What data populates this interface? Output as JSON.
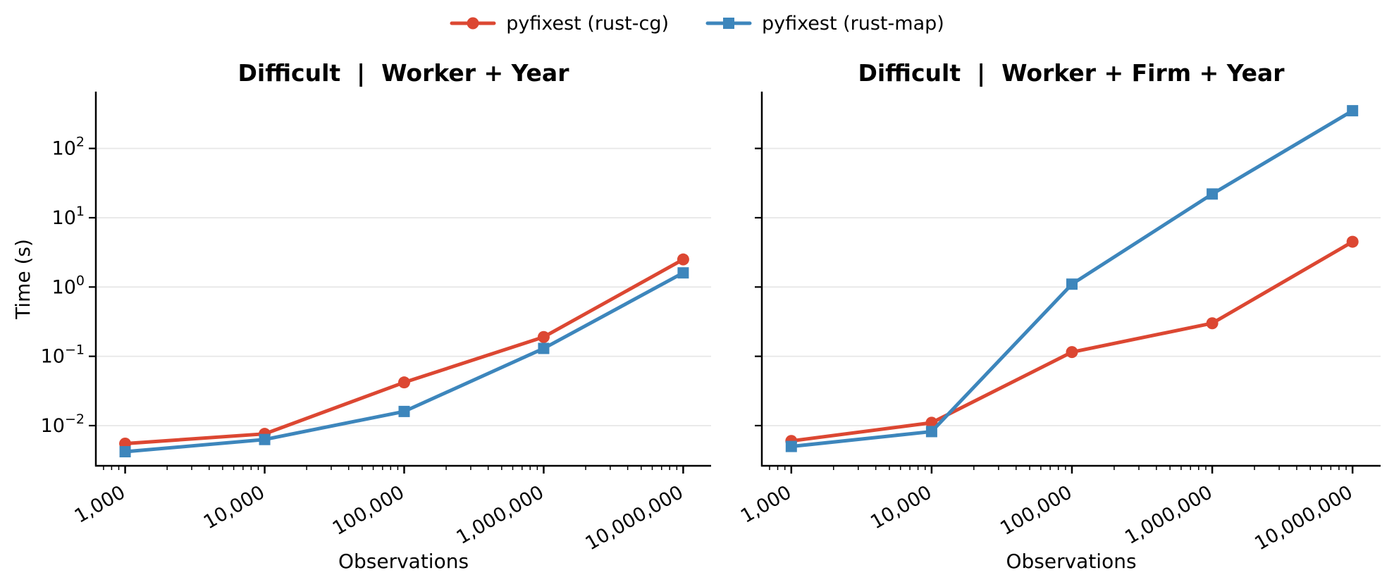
{
  "legend": {
    "items": [
      {
        "label": "pyfixest (rust-cg)",
        "color": "#DC4732",
        "marker": "circle"
      },
      {
        "label": "pyfixest (rust-map)",
        "color": "#3D86BC",
        "marker": "square"
      }
    ]
  },
  "chart_data": [
    {
      "type": "line",
      "title": "Difficult  |  Worker + Year",
      "xlabel": "Observations",
      "ylabel": "Time (s)",
      "x_scale": "log",
      "y_scale": "log",
      "grid": "horizontal-only",
      "legend_position": "figure top center",
      "x": [
        1000,
        10000,
        100000,
        1000000,
        10000000
      ],
      "x_tick_labels": [
        "1,000",
        "10,000",
        "100,000",
        "1,000,000",
        "10,000,000"
      ],
      "y_tick_exponents": [
        "2",
        "1",
        "0",
        "−1",
        "−2"
      ],
      "y_tick_values": [
        100,
        10,
        1,
        0.1,
        0.01
      ],
      "show_y_tick_labels": true,
      "xlim_log": [
        2.79,
        7.2
      ],
      "ylim_log": [
        -2.58,
        2.82
      ],
      "series": [
        {
          "name": "pyfixest (rust-cg)",
          "color": "#DC4732",
          "marker": "circle",
          "values": [
            0.0055,
            0.0076,
            0.042,
            0.19,
            2.5
          ]
        },
        {
          "name": "pyfixest (rust-map)",
          "color": "#3D86BC",
          "marker": "square",
          "values": [
            0.0042,
            0.0063,
            0.016,
            0.13,
            1.6
          ]
        }
      ]
    },
    {
      "type": "line",
      "title": "Difficult  |  Worker + Firm + Year",
      "xlabel": "Observations",
      "ylabel": "Time (s)",
      "x_scale": "log",
      "y_scale": "log",
      "grid": "horizontal-only",
      "legend_position": "figure top center",
      "x": [
        1000,
        10000,
        100000,
        1000000,
        10000000
      ],
      "x_tick_labels": [
        "1,000",
        "10,000",
        "100,000",
        "1,000,000",
        "10,000,000"
      ],
      "y_tick_exponents": [
        "2",
        "1",
        "0",
        "−1",
        "−2"
      ],
      "y_tick_values": [
        100,
        10,
        1,
        0.1,
        0.01
      ],
      "show_y_tick_labels": false,
      "xlim_log": [
        2.79,
        7.2
      ],
      "ylim_log": [
        -2.58,
        2.82
      ],
      "series": [
        {
          "name": "pyfixest (rust-cg)",
          "color": "#DC4732",
          "marker": "circle",
          "values": [
            0.006,
            0.011,
            0.115,
            0.3,
            4.5
          ]
        },
        {
          "name": "pyfixest (rust-map)",
          "color": "#3D86BC",
          "marker": "square",
          "values": [
            0.005,
            0.0082,
            1.1,
            22,
            350
          ]
        }
      ]
    }
  ],
  "style": {
    "grid_color": "#E7E7E7",
    "spine_color": "#000000",
    "text_color": "#000000",
    "background": "#ffffff"
  }
}
